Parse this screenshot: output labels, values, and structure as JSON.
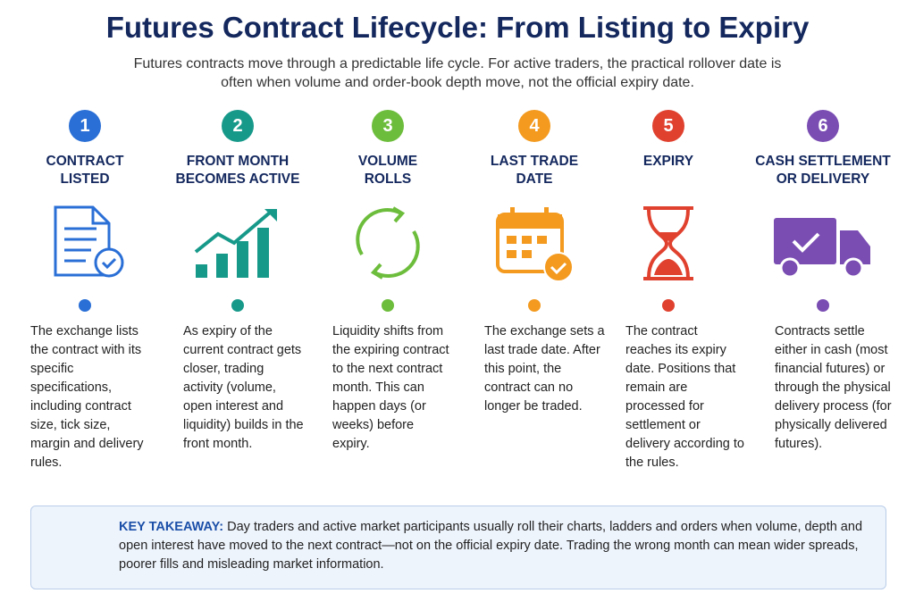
{
  "header": {
    "title": "Futures Contract Lifecycle: From Listing to Expiry",
    "subtitle": "Futures contracts move through a predictable life cycle. For active traders, the practical rollover date is often when volume and order-book depth move, not the official expiry date."
  },
  "steps": [
    {
      "number": 1,
      "title_lines": [
        "CONTRACT",
        "LISTED"
      ],
      "text": "The exchange lists the contract with its specific specifications, including contract size, tick size, margin and delivery rules.",
      "color": "#2a6fd6"
    },
    {
      "number": 2,
      "title_lines": [
        "FRONT MONTH",
        "BECOMES ACTIVE"
      ],
      "text": "As expiry of the current contract gets closer, trading activity (volume, open interest and liquidity) builds in the front month.",
      "color": "#17998a"
    },
    {
      "number": 3,
      "title_lines": [
        "VOLUME",
        "ROLLS"
      ],
      "text": "Liquidity shifts from the expiring contract to the next contract month. This can happen days (or weeks) before expiry.",
      "color": "#6dbd3c"
    },
    {
      "number": 4,
      "title_lines": [
        "LAST TRADE",
        "DATE"
      ],
      "text": "The exchange sets a last trade date. After this point, the contract can no longer be traded.",
      "color": "#f39a1f"
    },
    {
      "number": 5,
      "title_lines": [
        "EXPIRY"
      ],
      "text": "The contract reaches its expiry date. Positions that remain are processed for settlement or delivery according to the rules.",
      "color": "#e0412f"
    },
    {
      "number": 6,
      "title_lines": [
        "CASH SETTLEMENT",
        "OR DELIVERY"
      ],
      "text": "Contracts settle either in cash (most financial futures) or through the physical delivery process (for physically delivered futures).",
      "color": "#7a4db3"
    }
  ],
  "takeaway": {
    "label": "KEY TAKEAWAY:",
    "text": "Day traders and active market participants usually roll their charts, ladders and orders when volume, depth and open interest have moved to the next contract—not on the official expiry date. Trading the wrong month can mean wider spreads, poorer fills and misleading market information."
  }
}
